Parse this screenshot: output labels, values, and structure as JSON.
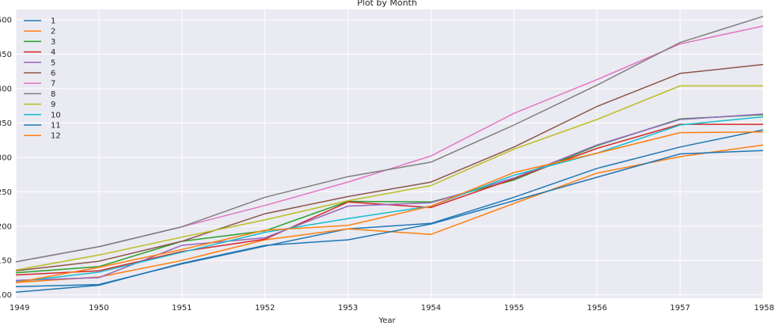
{
  "chart_data": {
    "type": "line",
    "title": "Plot by Month",
    "xlabel": "Year",
    "ylabel": "",
    "x": [
      1949,
      1950,
      1951,
      1952,
      1953,
      1954,
      1955,
      1956,
      1957,
      1958
    ],
    "x_tick_labels": [
      "1949",
      "1950",
      "1951",
      "1952",
      "1953",
      "1954",
      "1955",
      "1956",
      "1957",
      "1958"
    ],
    "xlim": [
      1949,
      1958
    ],
    "ylim": [
      95,
      515
    ],
    "y_ticks": [
      100,
      150,
      200,
      250,
      300,
      350,
      400,
      450,
      500
    ],
    "y_tick_labels": [
      "100",
      "150",
      "200",
      "250",
      "300",
      "350",
      "400",
      "450",
      "500"
    ],
    "grid": true,
    "legend_position": "top-left",
    "background_color": "#eaeaf2",
    "grid_color": "#ffffff",
    "series": [
      {
        "name": "1",
        "color": "#1f77b4",
        "values": [
          112,
          115,
          145,
          171,
          196,
          204,
          242,
          284,
          315,
          340
        ]
      },
      {
        "name": "2",
        "color": "#ff7f0e",
        "values": [
          118,
          126,
          150,
          180,
          196,
          188,
          233,
          277,
          301,
          318
        ]
      },
      {
        "name": "3",
        "color": "#2ca02c",
        "values": [
          132,
          141,
          178,
          193,
          236,
          235,
          267,
          317,
          356,
          362
        ]
      },
      {
        "name": "4",
        "color": "#d62728",
        "values": [
          129,
          135,
          163,
          181,
          235,
          227,
          269,
          313,
          348,
          348
        ]
      },
      {
        "name": "5",
        "color": "#9467bd",
        "values": [
          121,
          125,
          172,
          183,
          229,
          234,
          270,
          318,
          355,
          363
        ]
      },
      {
        "name": "6",
        "color": "#8c564b",
        "values": [
          135,
          149,
          178,
          218,
          243,
          264,
          315,
          374,
          422,
          435
        ]
      },
      {
        "name": "7",
        "color": "#e377c2",
        "values": [
          148,
          170,
          199,
          230,
          264,
          302,
          364,
          413,
          465,
          491
        ]
      },
      {
        "name": "8",
        "color": "#7f7f7f",
        "values": [
          148,
          170,
          199,
          242,
          272,
          293,
          347,
          405,
          467,
          505
        ]
      },
      {
        "name": "9",
        "color": "#bcbd22",
        "values": [
          136,
          158,
          184,
          209,
          237,
          259,
          312,
          355,
          404,
          404
        ]
      },
      {
        "name": "10",
        "color": "#17becf",
        "values": [
          119,
          133,
          162,
          191,
          211,
          229,
          274,
          306,
          347,
          359
        ]
      },
      {
        "name": "11",
        "color": "#1f77b4",
        "values": [
          104,
          114,
          146,
          172,
          180,
          203,
          237,
          271,
          305,
          310
        ]
      },
      {
        "name": "12",
        "color": "#ff7f0e",
        "values": [
          118,
          140,
          166,
          194,
          201,
          229,
          278,
          306,
          336,
          337
        ]
      }
    ]
  }
}
